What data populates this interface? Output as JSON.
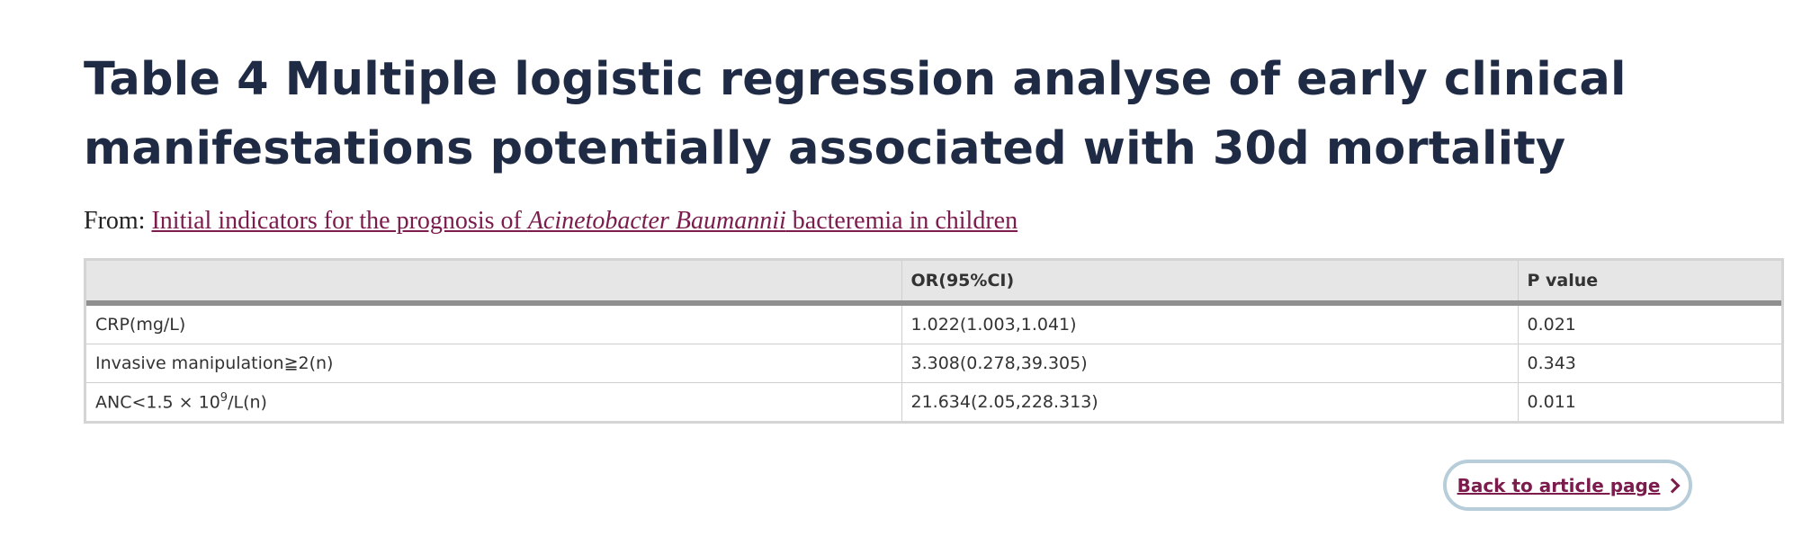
{
  "title": "Table 4 Multiple logistic regression analyse of early clinical manifestations potentially associated with 30d mortality",
  "from": {
    "label": "From:",
    "link_part1": "Initial indicators for the prognosis of ",
    "link_italic": "Acinetobacter Baumannii",
    "link_part2": " bacteremia in children"
  },
  "table": {
    "headers": [
      "",
      "OR(95%CI)",
      "P value"
    ],
    "rows": [
      {
        "label": "CRP(mg/L)",
        "or": "1.022(1.003,1.041)",
        "p": "0.021"
      },
      {
        "label": "Invasive manipulation≧2(n)",
        "or": "3.308(0.278,39.305)",
        "p": "0.343"
      },
      {
        "label_pre": "ANC<1.5 × 10",
        "label_sup": "9",
        "label_post": "/L(n)",
        "or": "21.634(2.05,228.313)",
        "p": "0.011"
      }
    ]
  },
  "back_button": {
    "label": "Back to article page",
    "icon": "chevron-right-icon"
  }
}
